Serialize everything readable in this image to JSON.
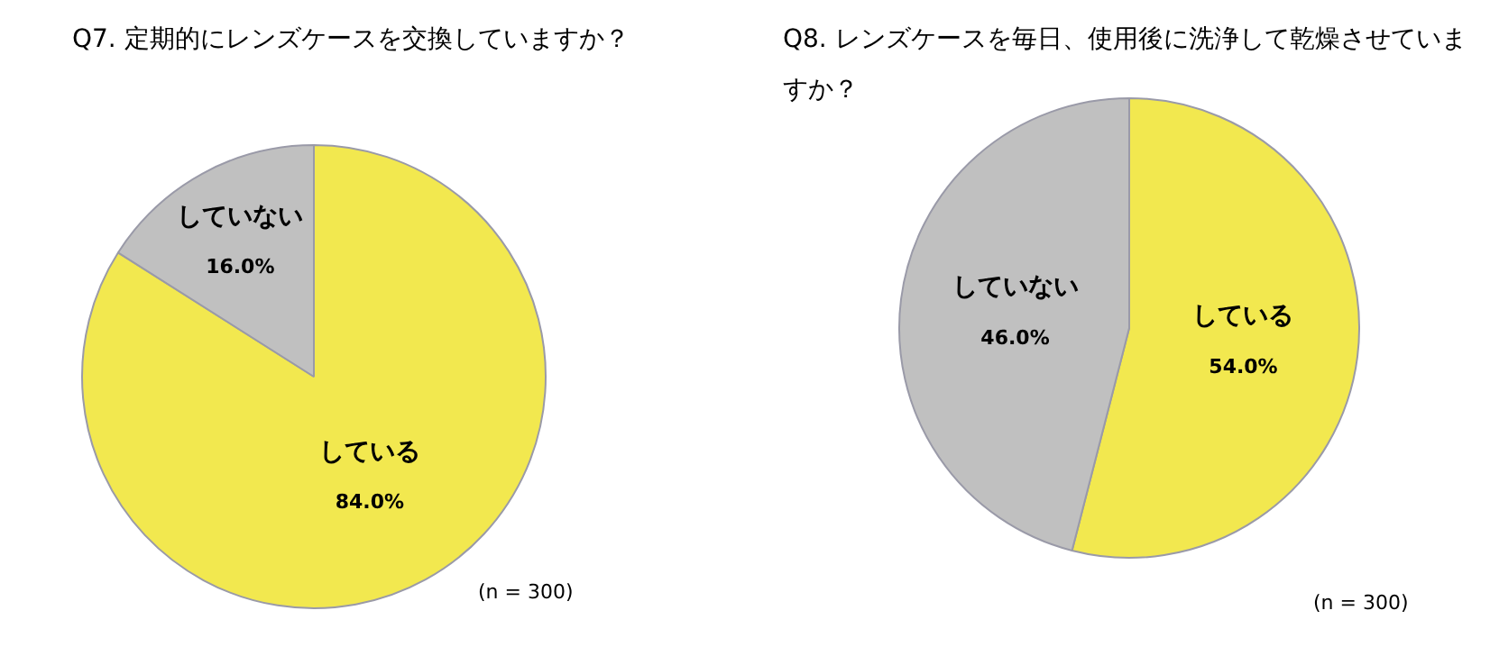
{
  "chart_data": [
    {
      "type": "pie",
      "title": "Q7. 定期的にレンズケースを交換していますか？",
      "categories": [
        "している",
        "していない"
      ],
      "values": [
        84,
        16
      ],
      "colors": [
        "#f2e84f",
        "#c0c0c0"
      ],
      "value_labels": [
        "84.0%",
        "16.0%"
      ],
      "legend": false,
      "annotations": [
        "(n = 300)"
      ]
    },
    {
      "type": "pie",
      "title": "Q8. レンズケースを毎日、使用後に洗浄して乾燥させていますか？",
      "categories": [
        "している",
        "していない"
      ],
      "values": [
        54,
        46
      ],
      "colors": [
        "#f2e84f",
        "#c0c0c0"
      ],
      "value_labels": [
        "54.0%",
        "46.0%"
      ],
      "legend": false,
      "annotations": [
        "(n = 300)"
      ]
    }
  ]
}
